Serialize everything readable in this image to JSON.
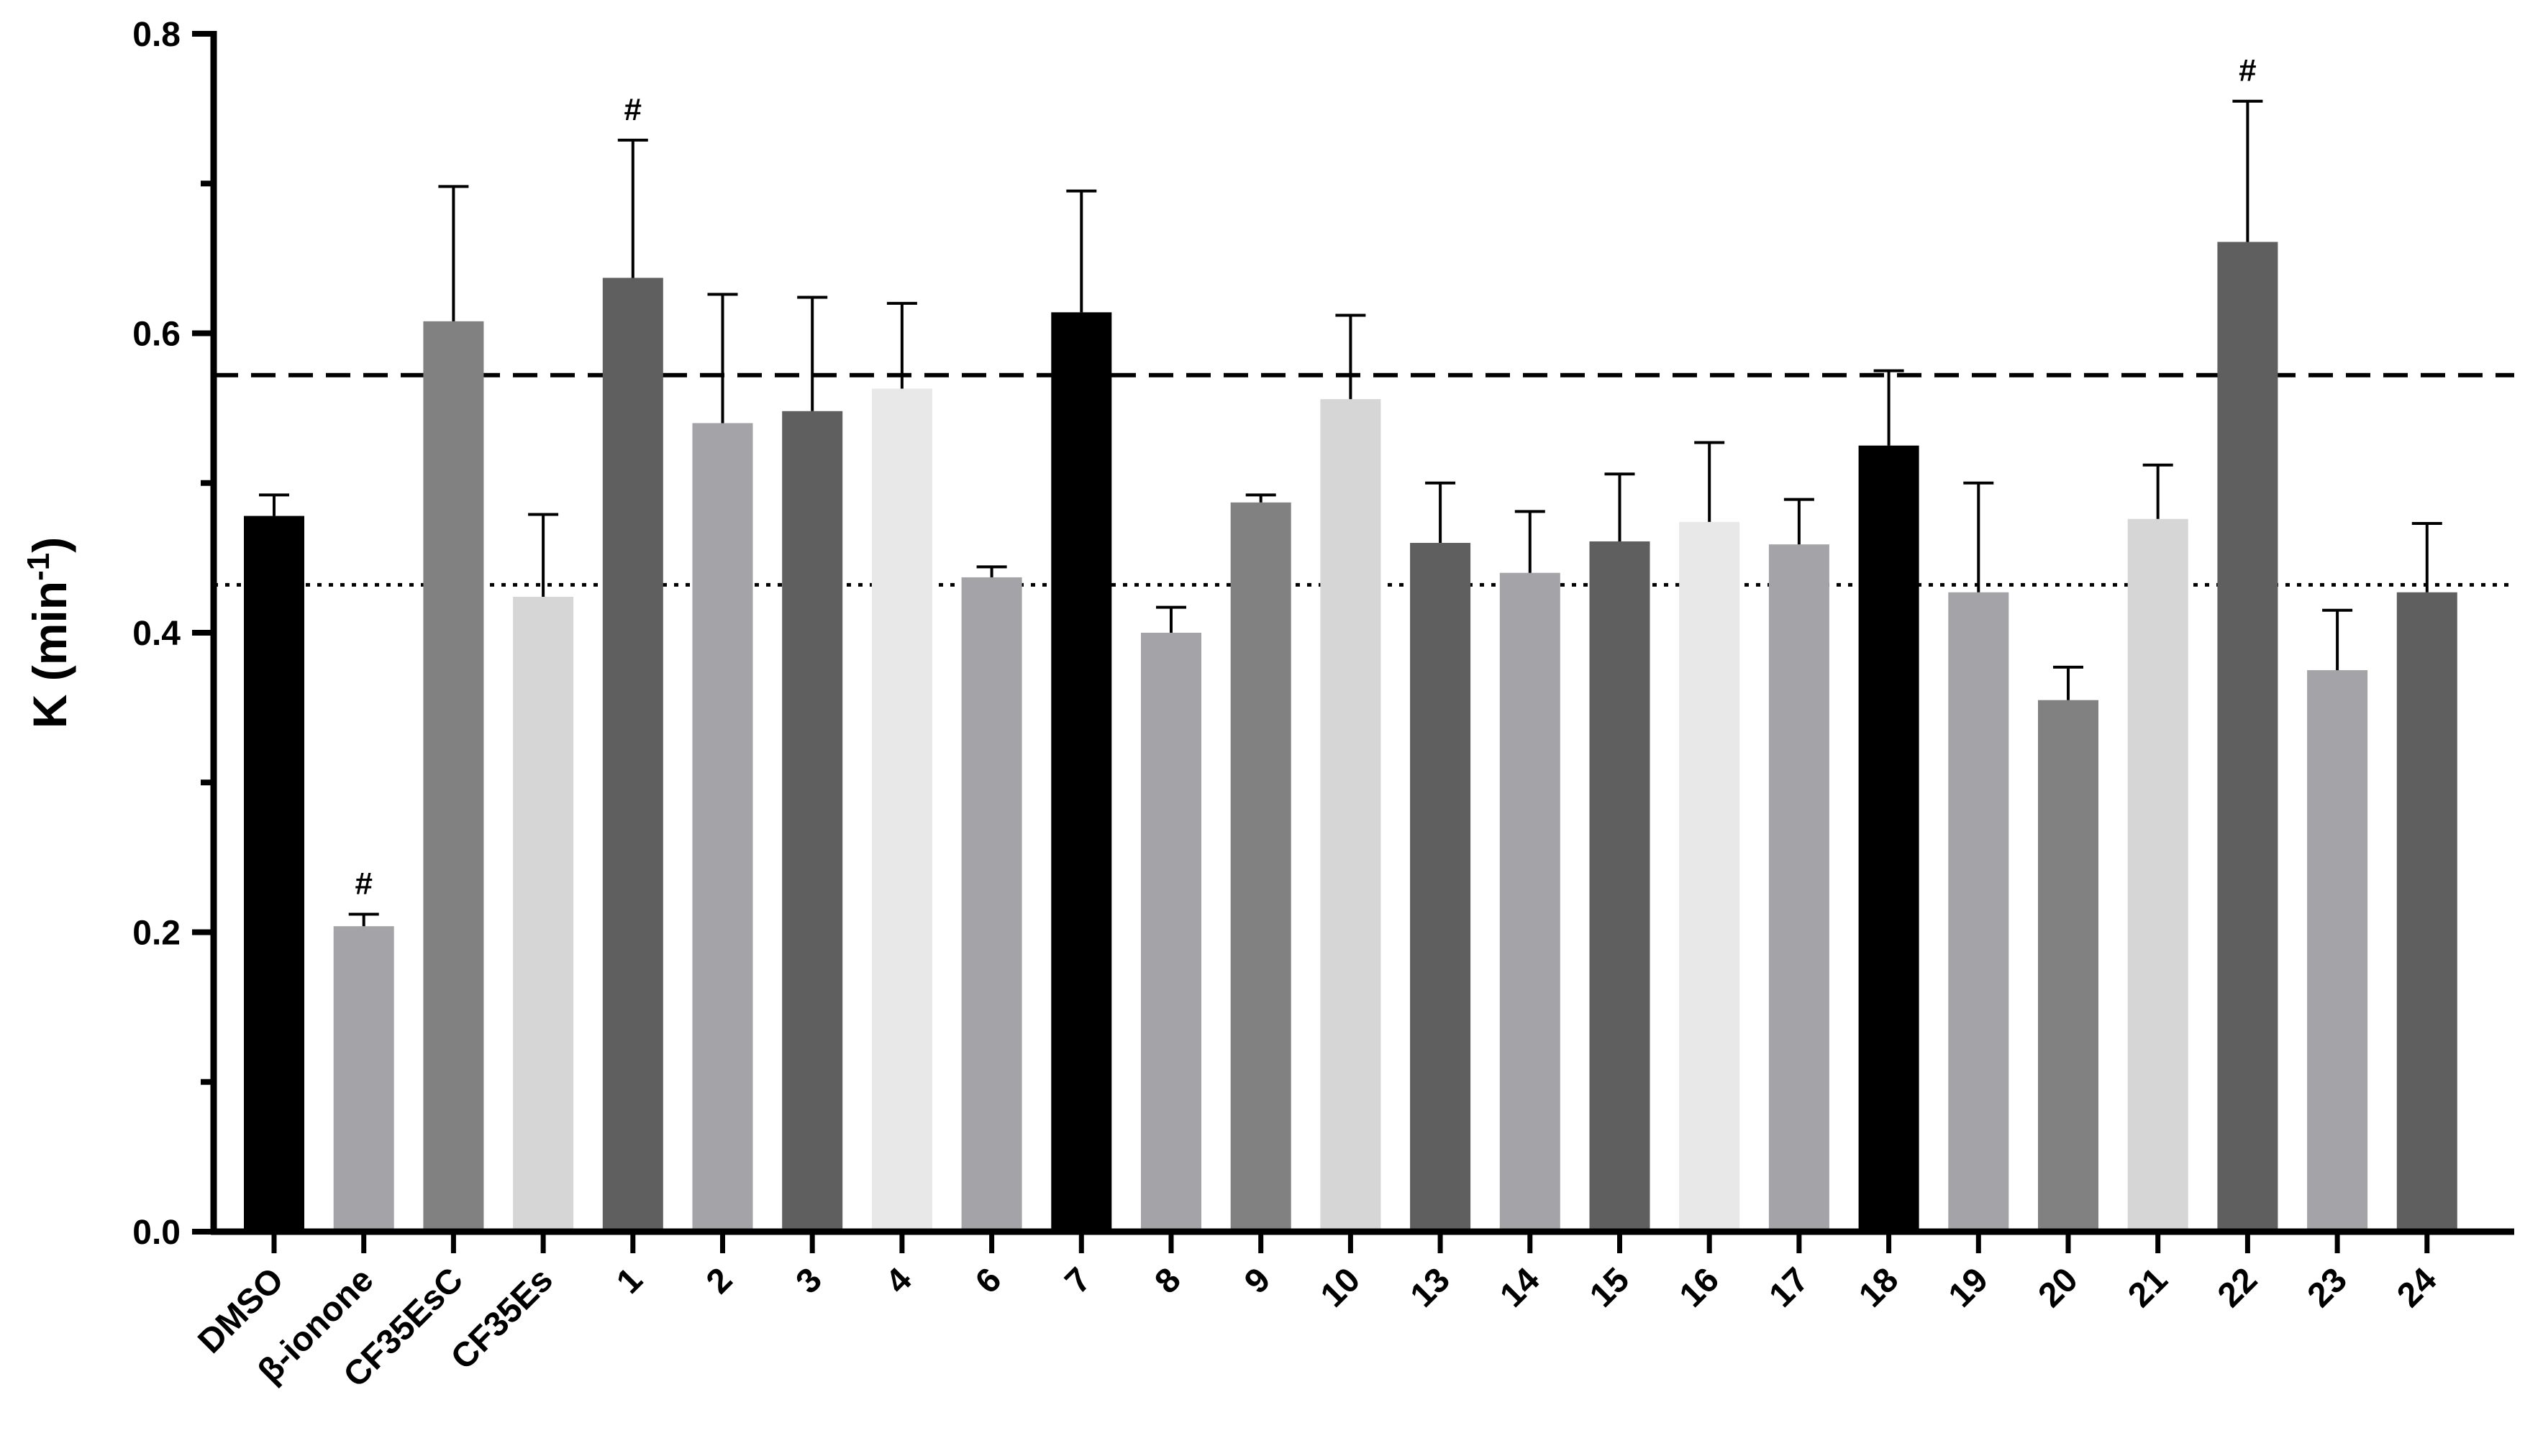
{
  "chart_data": {
    "type": "bar",
    "title": "",
    "xlabel": "",
    "ylabel": "K (min",
    "ylabel_sup": "-1",
    "ylabel_close": ")",
    "ylim": [
      0,
      0.8
    ],
    "yticks": [
      "0.0",
      "0.2",
      "0.4",
      "0.6",
      "0.8"
    ],
    "ytick_values": [
      0,
      0.2,
      0.4,
      0.6,
      0.8
    ],
    "categories": [
      "DMSO",
      "β-ionone",
      "CF35EsC",
      "CF35Es",
      "1",
      "2",
      "3",
      "4",
      "6",
      "7",
      "8",
      "9",
      "10",
      "13",
      "14",
      "15",
      "16",
      "17",
      "18",
      "19",
      "20",
      "21",
      "22",
      "23",
      "24"
    ],
    "values": [
      0.478,
      0.204,
      0.608,
      0.424,
      0.637,
      0.54,
      0.548,
      0.563,
      0.437,
      0.614,
      0.4,
      0.487,
      0.556,
      0.46,
      0.44,
      0.461,
      0.474,
      0.459,
      0.525,
      0.427,
      0.355,
      0.476,
      0.661,
      0.375,
      0.427
    ],
    "errors": [
      0.014,
      0.008,
      0.09,
      0.055,
      0.092,
      0.086,
      0.076,
      0.057,
      0.007,
      0.081,
      0.017,
      0.005,
      0.056,
      0.04,
      0.041,
      0.045,
      0.053,
      0.03,
      0.05,
      0.073,
      0.022,
      0.036,
      0.094,
      0.04,
      0.046
    ],
    "colors": [
      "#000000",
      "#a4a3a8",
      "#818181",
      "#d6d6d6",
      "#5f5f5f",
      "#a4a3a8",
      "#5f5f5f",
      "#e8e8e8",
      "#a4a3a8",
      "#000000",
      "#a4a3a8",
      "#818181",
      "#d6d6d6",
      "#5f5f5f",
      "#a4a3a8",
      "#5f5f5f",
      "#e8e8e8",
      "#a4a3a8",
      "#000000",
      "#a4a3a8",
      "#818181",
      "#d6d6d6",
      "#5f5f5f",
      "#a4a3a8",
      "#5f5f5f"
    ],
    "annotations": [
      {
        "category": "β-ionone",
        "text": "#"
      },
      {
        "category": "1",
        "text": "#"
      },
      {
        "category": "22",
        "text": "#"
      }
    ],
    "reference_lines": [
      {
        "style": "dashed",
        "y": 0.572
      },
      {
        "style": "dotted",
        "y": 0.432
      }
    ],
    "grid": false,
    "legend": "none"
  }
}
